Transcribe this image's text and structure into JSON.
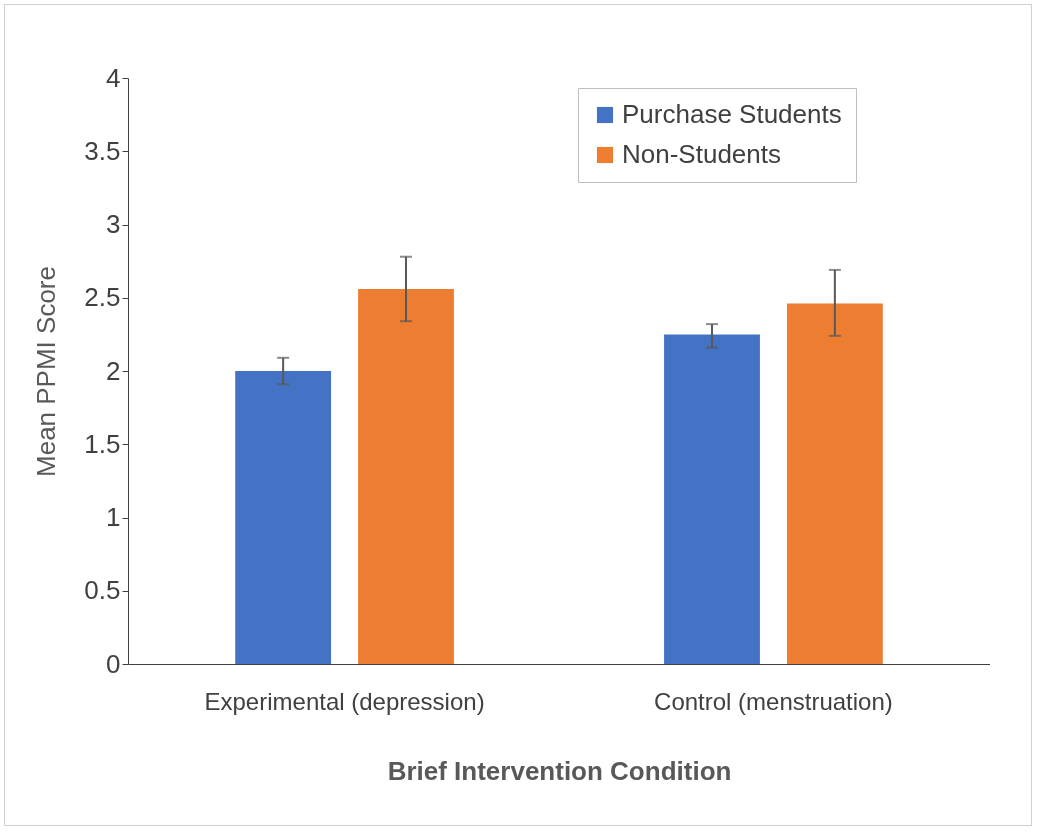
{
  "chart_data": {
    "type": "bar",
    "categories": [
      "Experimental (depression)",
      "Control (menstruation)"
    ],
    "xlabel": "Brief Intervention Condition",
    "ylabel": "Mean PPMI Score",
    "series": [
      {
        "name": "Purchase Students",
        "color": "#4472c4",
        "values": [
          2.0,
          2.25
        ],
        "errors": [
          [
            1.91,
            2.09
          ],
          [
            2.16,
            2.32
          ]
        ]
      },
      {
        "name": "Non-Students",
        "color": "#ed7d31",
        "values": [
          2.56,
          2.46
        ],
        "errors": [
          [
            2.34,
            2.78
          ],
          [
            2.24,
            2.69
          ]
        ]
      }
    ],
    "ylim": [
      0,
      4
    ],
    "yticks": [
      0,
      0.5,
      1,
      1.5,
      2,
      2.5,
      3,
      3.5,
      4
    ],
    "grid": false,
    "legend": "top right"
  }
}
